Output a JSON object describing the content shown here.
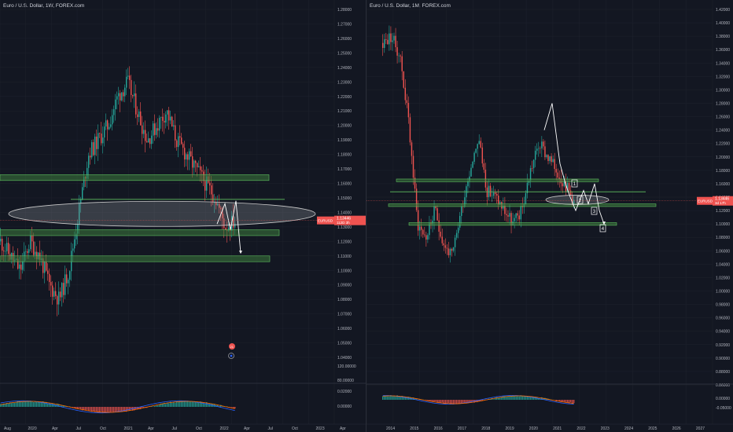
{
  "theme": {
    "bg": "#131722",
    "grid": "#1e222d",
    "up": "#26a69a",
    "down": "#ef5350",
    "zone": "#3d7a3d",
    "zone_edge": "#5fbf5f",
    "ellipse": "#c8c8c8",
    "price_tag": "#ef5350",
    "macd": "#2962ff",
    "signal": "#ff6d00"
  },
  "left": {
    "title": "Euro / U.S. Dollar, 1W, FOREX.com",
    "price_tag": "EURUSD",
    "price_value": "1.13446",
    "price_time": "112D 3h",
    "price_axis": {
      "unit": "USD",
      "ticks": [
        "1.28000",
        "1.27000",
        "1.26000",
        "1.25000",
        "1.24000",
        "1.23000",
        "1.22000",
        "1.21000",
        "1.20000",
        "1.19000",
        "1.18000",
        "1.17000",
        "1.16000",
        "1.15000",
        "1.14000",
        "1.13000",
        "1.12000",
        "1.11000",
        "1.10000",
        "1.09000",
        "1.08000",
        "1.07000",
        "1.06000",
        "1.05000",
        "1.04000"
      ]
    },
    "indicator_axis": [
      "120.00000",
      "80.00000",
      "0.02000",
      "0.00000"
    ],
    "time_axis": [
      "Aug",
      "2020",
      "Apr",
      "Jul",
      "Oct",
      "2021",
      "Apr",
      "Jul",
      "Oct",
      "2022",
      "Apr",
      "Jul",
      "Oct",
      "2023",
      "Apr"
    ],
    "markers": [
      {
        "label": "21",
        "icon": "flag-icon"
      },
      {
        "label": "",
        "icon": "circle-icon"
      }
    ]
  },
  "right": {
    "title": "Euro / U.S. Dollar, 1M, FOREX.com",
    "price_tag": "EURUSD",
    "price_value": "1.13446",
    "price_time": "3d 17h",
    "price_axis": {
      "ticks": [
        "1.42000",
        "1.40000",
        "1.38000",
        "1.36000",
        "1.34000",
        "1.32000",
        "1.30000",
        "1.28000",
        "1.26000",
        "1.24000",
        "1.22000",
        "1.20000",
        "1.18000",
        "1.16000",
        "1.14000",
        "1.12000",
        "1.10000",
        "1.08000",
        "1.06000",
        "1.04000",
        "1.02000",
        "1.00000",
        "0.98000",
        "0.96000",
        "0.94000",
        "0.92000",
        "0.90000",
        "0.88000",
        "0.86000"
      ]
    },
    "indicator_axis": [
      "0.00000",
      "-0.05000"
    ],
    "time_axis": [
      "2014",
      "2015",
      "2016",
      "2017",
      "2018",
      "2019",
      "2020",
      "2021",
      "2022",
      "2023",
      "2024",
      "2025",
      "2026",
      "2027"
    ],
    "wave_labels": [
      "1",
      "2",
      "3",
      "4"
    ]
  },
  "chart_data": [
    {
      "type": "candlestick",
      "timeframe": "1W",
      "title": "Euro / U.S. Dollar, 1W, FOREX.com",
      "ylim": [
        1.04,
        1.28
      ],
      "approx_close_path": [
        1.12,
        1.11,
        1.1,
        1.12,
        1.11,
        1.09,
        1.08,
        1.1,
        1.14,
        1.18,
        1.19,
        1.2,
        1.22,
        1.23,
        1.21,
        1.19,
        1.2,
        1.21,
        1.19,
        1.18,
        1.17,
        1.16,
        1.15,
        1.13,
        1.134
      ],
      "zones": [
        [
          1.162,
          1.166
        ],
        [
          1.124,
          1.128
        ],
        [
          1.106,
          1.11
        ]
      ],
      "last": 1.13446
    },
    {
      "type": "candlestick",
      "timeframe": "1M",
      "title": "Euro / U.S. Dollar, 1M, FOREX.com",
      "ylim": [
        0.86,
        1.42
      ],
      "approx_close_path": [
        1.37,
        1.38,
        1.35,
        1.25,
        1.1,
        1.08,
        1.12,
        1.07,
        1.05,
        1.12,
        1.18,
        1.23,
        1.15,
        1.14,
        1.12,
        1.1,
        1.12,
        1.18,
        1.22,
        1.2,
        1.18,
        1.16,
        1.134
      ],
      "zones": [
        [
          1.163,
          1.167
        ],
        [
          1.126,
          1.13
        ],
        [
          1.098,
          1.102
        ]
      ],
      "last": 1.13446
    }
  ]
}
